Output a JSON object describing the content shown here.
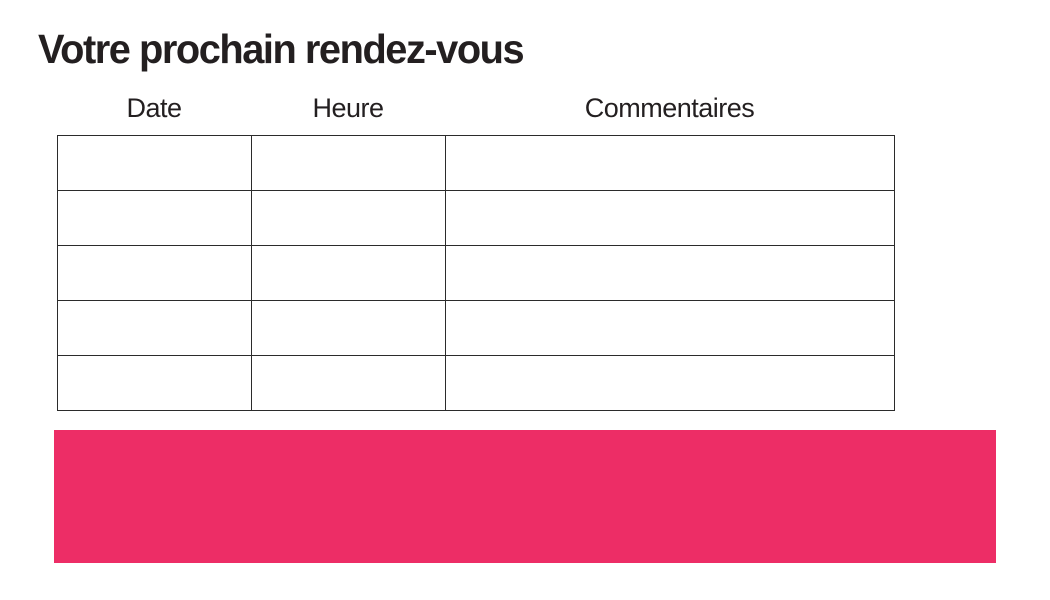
{
  "page": {
    "title": "Votre prochain rendez-vous"
  },
  "appointments_table": {
    "columns": [
      {
        "label": "Date"
      },
      {
        "label": "Heure"
      },
      {
        "label": "Commentaires"
      }
    ],
    "rows": [
      [
        "",
        "",
        ""
      ],
      [
        "",
        "",
        ""
      ],
      [
        "",
        "",
        ""
      ],
      [
        "",
        "",
        ""
      ],
      [
        "",
        "",
        ""
      ]
    ]
  },
  "banner": {
    "text": ""
  },
  "colors": {
    "accent_pink": "#ED2D66",
    "text": "#231F20",
    "table_border": "#2B2B2B"
  }
}
